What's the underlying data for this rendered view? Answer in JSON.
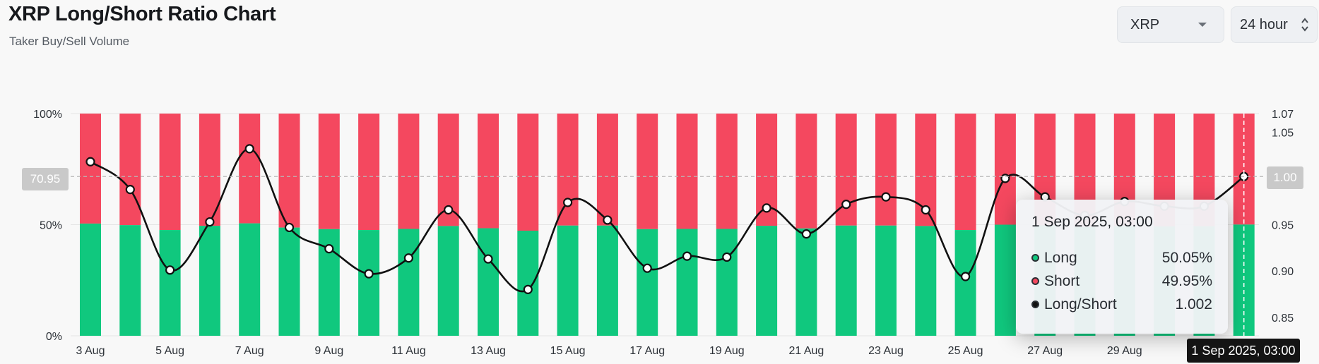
{
  "header": {
    "title": "XRP Long/Short Ratio Chart",
    "subtitle": "Taker Buy/Sell Volume"
  },
  "controls": {
    "coin": "XRP",
    "period": "24 hour"
  },
  "colors": {
    "long": "#10c87e",
    "short": "#f4485f",
    "ratio_line": "#111111"
  },
  "crosshair": {
    "left_value": "70.95",
    "right_value": "1.00",
    "date_label": "1 Sep 2025, 03:00"
  },
  "tooltip": {
    "title": "1 Sep 2025, 03:00",
    "rows": [
      {
        "label": "Long",
        "value": "50.05%",
        "color": "#10c87e"
      },
      {
        "label": "Short",
        "value": "49.95%",
        "color": "#f4485f"
      },
      {
        "label": "Long/Short",
        "value": "1.002",
        "color": "#111111"
      }
    ]
  },
  "chart_data": {
    "type": "bar",
    "stacked": true,
    "title": "XRP Long/Short Ratio Chart",
    "categories": [
      "3 Aug",
      "4 Aug",
      "5 Aug",
      "6 Aug",
      "7 Aug",
      "8 Aug",
      "9 Aug",
      "10 Aug",
      "11 Aug",
      "12 Aug",
      "13 Aug",
      "14 Aug",
      "15 Aug",
      "16 Aug",
      "17 Aug",
      "18 Aug",
      "19 Aug",
      "20 Aug",
      "21 Aug",
      "22 Aug",
      "23 Aug",
      "24 Aug",
      "25 Aug",
      "26 Aug",
      "27 Aug",
      "28 Aug",
      "29 Aug",
      "30 Aug",
      "31 Aug",
      "1 Sep"
    ],
    "x_tick_labels": [
      "3 Aug",
      "5 Aug",
      "7 Aug",
      "9 Aug",
      "11 Aug",
      "13 Aug",
      "15 Aug",
      "17 Aug",
      "19 Aug",
      "21 Aug",
      "23 Aug",
      "25 Aug",
      "27 Aug",
      "29 Aug"
    ],
    "series": [
      {
        "name": "Long",
        "axis": "left",
        "values": [
          50.5,
          49.8,
          47.6,
          49.5,
          50.6,
          48.7,
          48.0,
          47.6,
          48.1,
          49.4,
          48.4,
          47.3,
          49.6,
          49.6,
          48.0,
          48.1,
          48.1,
          49.5,
          48.3,
          49.6,
          49.6,
          49.4,
          47.6,
          50.0,
          49.7,
          49.0,
          49.4,
          49.2,
          49.3,
          50.05
        ]
      },
      {
        "name": "Short",
        "axis": "left",
        "values": [
          49.5,
          50.2,
          52.4,
          50.5,
          49.4,
          51.3,
          52.0,
          52.4,
          51.9,
          50.6,
          51.6,
          52.7,
          50.4,
          50.4,
          52.0,
          51.9,
          51.9,
          50.5,
          51.7,
          50.4,
          50.4,
          50.6,
          52.4,
          50.0,
          50.3,
          51.0,
          50.6,
          50.8,
          50.7,
          49.95
        ]
      },
      {
        "name": "Long/Short",
        "type": "line",
        "axis": "right",
        "values": [
          1.018,
          0.988,
          0.901,
          0.953,
          1.032,
          0.947,
          0.924,
          0.897,
          0.914,
          0.966,
          0.913,
          0.88,
          0.974,
          0.955,
          0.903,
          0.916,
          0.915,
          0.968,
          0.94,
          0.972,
          0.98,
          0.966,
          0.894,
          1.0,
          0.98,
          0.96,
          0.975,
          0.97,
          0.97,
          1.002
        ]
      }
    ],
    "y_left": {
      "ticks": [
        "0%",
        "50%",
        "100%"
      ],
      "range": [
        0,
        100
      ]
    },
    "y_right": {
      "ticks": [
        "0.85",
        "0.90",
        "0.95",
        "1.00",
        "1.05",
        "1.07"
      ],
      "range": [
        0.83,
        1.07
      ]
    },
    "legend": "none",
    "grid": true
  }
}
